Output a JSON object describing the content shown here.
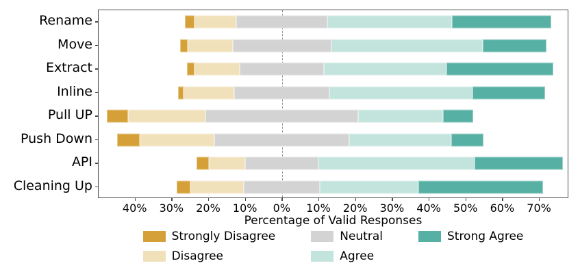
{
  "chart_data": {
    "type": "bar",
    "variant": "diverging-stacked-likert",
    "title": "",
    "xlabel": "Percentage of Valid Responses",
    "ylabel": "",
    "categories": [
      "Rename",
      "Move",
      "Extract",
      "Inline",
      "Pull UP",
      "Push Down",
      "API",
      "Cleaning Up"
    ],
    "series": [
      {
        "name": "Strongly Disagree",
        "color": "#d4a037",
        "values": [
          2.6,
          2.0,
          2.0,
          1.4,
          5.8,
          6.3,
          3.4,
          3.8
        ]
      },
      {
        "name": "Disagree",
        "color": "#f1e1bb",
        "values": [
          11.4,
          12.3,
          12.4,
          13.9,
          21.2,
          20.3,
          10.0,
          14.5
        ]
      },
      {
        "name": "Neutral",
        "color": "#d3d3d3",
        "values": [
          25.0,
          26.9,
          22.9,
          25.9,
          41.6,
          36.8,
          19.9,
          20.9
        ]
      },
      {
        "name": "Agree",
        "color": "#c3e3dd",
        "values": [
          34.0,
          41.4,
          33.4,
          39.1,
          23.2,
          27.9,
          42.6,
          26.9
        ]
      },
      {
        "name": "Strong Agree",
        "color": "#57b0a4",
        "values": [
          27.0,
          17.4,
          29.3,
          19.7,
          8.2,
          8.7,
          24.1,
          33.9
        ]
      }
    ],
    "neutral_centered_at_zero": true,
    "zero_line": {
      "x": 0,
      "style": "dashed",
      "color": "#8f8f8f"
    },
    "x_ticks": [
      -40,
      -30,
      -20,
      -10,
      0,
      10,
      20,
      30,
      40,
      50,
      60,
      70
    ],
    "x_tick_labels": [
      "40%",
      "30%",
      "20%",
      "10%",
      "0%",
      "10%",
      "20%",
      "30%",
      "40%",
      "50%",
      "60%",
      "70%"
    ],
    "xlim": [
      -50,
      78
    ],
    "grid": false,
    "legend": {
      "position": "below-chart",
      "columns": 3,
      "rows": 2,
      "order_column_major": [
        "Strongly Disagree",
        "Disagree",
        "Neutral",
        "Agree",
        "Strong Agree"
      ]
    },
    "frame_color": "#4a4a4a"
  }
}
